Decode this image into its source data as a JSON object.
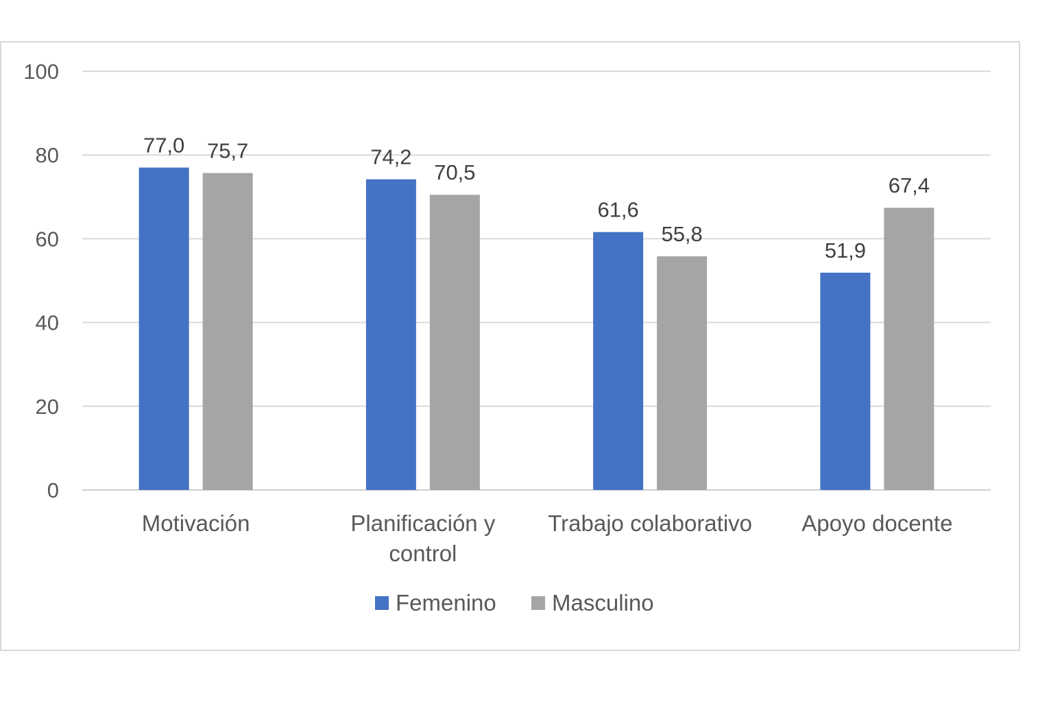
{
  "chart_data": {
    "type": "bar",
    "title": "",
    "xlabel": "",
    "ylabel": "",
    "ylim": [
      0,
      100
    ],
    "yticks": [
      0,
      20,
      40,
      60,
      80,
      100
    ],
    "grid": true,
    "legend_position": "bottom",
    "categories": [
      [
        "Motivación"
      ],
      [
        "Planificación y",
        "control"
      ],
      [
        "Trabajo colaborativo"
      ],
      [
        "Apoyo docente"
      ]
    ],
    "series": [
      {
        "name": "Femenino",
        "color": "#4472c4",
        "values": [
          77.0,
          74.2,
          61.6,
          51.9
        ],
        "labels": [
          "77,0",
          "74,2",
          "61,6",
          "51,9"
        ]
      },
      {
        "name": "Masculino",
        "color": "#a5a5a5",
        "values": [
          75.7,
          70.5,
          55.8,
          67.4
        ],
        "labels": [
          "75,7",
          "70,5",
          "55,8",
          "67,4"
        ]
      }
    ]
  }
}
